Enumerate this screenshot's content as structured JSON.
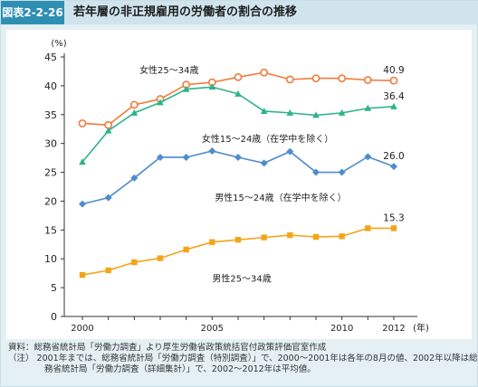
{
  "header": {
    "badge": "図表2-2-26",
    "title": "若年層の非正規雇用の労働者の割合の推移"
  },
  "notes": {
    "source": "資料：総務省統計局「労働力調査」より厚生労働省政策統括官付政策評価官室作成",
    "note1": "（注）  2001年までは、総務省統計局「労働力調査（特別調査）」で、2000～2001年は各年の8月の値、2002年以降は総",
    "note2": "務省統計局「労働力調査（詳細集計）」で、2002～2012年は平均値。"
  },
  "colors": {
    "female25": "#f07a3c",
    "female15": "#2db38a",
    "male15": "#4f8ccf",
    "male25": "#f4a418",
    "axis": "#333333"
  },
  "chart_data": {
    "type": "line",
    "title": "",
    "ylabel": "(%)",
    "xunit": "(年)",
    "x": [
      2000,
      2001,
      2002,
      2003,
      2004,
      2005,
      2006,
      2007,
      2008,
      2009,
      2010,
      2011,
      2012
    ],
    "xticks": [
      "2000",
      "2005",
      "2010",
      "2012"
    ],
    "yticks": [
      0,
      5,
      10,
      15,
      20,
      25,
      30,
      35,
      40,
      45
    ],
    "ylim": [
      0,
      45
    ],
    "series": [
      {
        "name": "女性25～34歳",
        "marker": "circle-open",
        "end_label": "40.9",
        "values": [
          33.5,
          33.2,
          36.7,
          37.7,
          40.2,
          40.6,
          41.5,
          42.3,
          41.1,
          41.3,
          41.3,
          41.0,
          40.9
        ]
      },
      {
        "name": "女性15～24歳（在学中を除く）",
        "marker": "triangle",
        "end_label": "36.4",
        "values": [
          26.8,
          32.2,
          35.3,
          37.1,
          39.4,
          39.8,
          38.6,
          35.6,
          35.3,
          34.9,
          35.3,
          36.1,
          36.4
        ]
      },
      {
        "name": "男性15～24歳（在学中を除く）",
        "marker": "diamond",
        "end_label": "26.0",
        "values": [
          19.5,
          20.6,
          24.0,
          27.6,
          27.6,
          28.7,
          27.6,
          26.6,
          28.6,
          25.0,
          25.0,
          27.7,
          26.0
        ]
      },
      {
        "name": "男性25～34歳",
        "marker": "square",
        "end_label": "15.3",
        "values": [
          7.2,
          8.0,
          9.4,
          10.1,
          11.6,
          12.9,
          13.3,
          13.7,
          14.1,
          13.8,
          13.9,
          15.3,
          15.3
        ]
      }
    ]
  }
}
